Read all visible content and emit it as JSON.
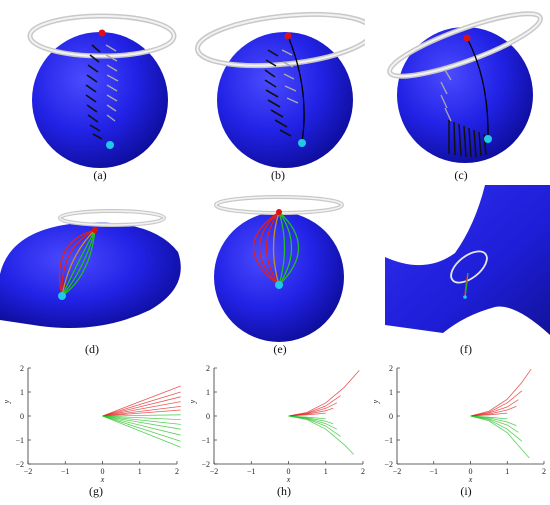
{
  "captions": {
    "a": "(a)",
    "b": "(b)",
    "c": "(c)",
    "d": "(d)",
    "e": "(e)",
    "f": "(f)",
    "g": "(g)",
    "h": "(h)",
    "i": "(i)"
  },
  "colors": {
    "sphere": "#1f1fe0",
    "ring": "#d9d9d9",
    "start_point": "#e01010",
    "end_point": "#22c8e8",
    "path_red": "#e02020",
    "path_green": "#20c020"
  },
  "chart_data": [
    {
      "type": "line",
      "panel": "g",
      "xlabel": "x",
      "ylabel": "y",
      "xlim": [
        -2,
        2
      ],
      "ylim": [
        -2,
        2
      ],
      "xticks": [
        "−2",
        "−1",
        "0",
        "1",
        "2"
      ],
      "yticks": [
        "2",
        "1",
        "0",
        "−1",
        "−2"
      ],
      "series": [
        {
          "color": "red",
          "x": [
            0,
            2.1
          ],
          "y": [
            0,
            1.25
          ]
        },
        {
          "color": "red",
          "x": [
            0,
            2.1
          ],
          "y": [
            0,
            1.0
          ]
        },
        {
          "color": "red",
          "x": [
            0,
            2.1
          ],
          "y": [
            0,
            0.8
          ]
        },
        {
          "color": "red",
          "x": [
            0,
            2.1
          ],
          "y": [
            0,
            0.6
          ]
        },
        {
          "color": "red",
          "x": [
            0,
            2.1
          ],
          "y": [
            0,
            0.4
          ]
        },
        {
          "color": "red",
          "x": [
            0,
            2.1
          ],
          "y": [
            0,
            0.25
          ]
        },
        {
          "color": "green",
          "x": [
            0,
            2.1
          ],
          "y": [
            0,
            0.05
          ]
        },
        {
          "color": "green",
          "x": [
            0,
            2.1
          ],
          "y": [
            0,
            -0.15
          ]
        },
        {
          "color": "green",
          "x": [
            0,
            2.1
          ],
          "y": [
            0,
            -0.35
          ]
        },
        {
          "color": "green",
          "x": [
            0,
            2.1
          ],
          "y": [
            0,
            -0.55
          ]
        },
        {
          "color": "green",
          "x": [
            0,
            2.1
          ],
          "y": [
            0,
            -0.8
          ]
        },
        {
          "color": "green",
          "x": [
            0,
            2.1
          ],
          "y": [
            0,
            -1.05
          ]
        },
        {
          "color": "green",
          "x": [
            0,
            2.1
          ],
          "y": [
            0,
            -1.3
          ]
        }
      ]
    },
    {
      "type": "line",
      "panel": "h",
      "xlabel": "x",
      "ylabel": "y",
      "xlim": [
        -2,
        2
      ],
      "ylim": [
        -2,
        2
      ],
      "xticks": [
        "−2",
        "−1",
        "0",
        "1",
        "2"
      ],
      "yticks": [
        "2",
        "1",
        "0",
        "−1",
        "−2"
      ],
      "series": [
        {
          "color": "red",
          "x": [
            0,
            0.5,
            1.0,
            1.5,
            1.9
          ],
          "y": [
            0,
            0.15,
            0.55,
            1.2,
            1.9
          ]
        },
        {
          "color": "red",
          "x": [
            0,
            0.5,
            1.0,
            1.4
          ],
          "y": [
            0,
            0.12,
            0.42,
            0.85
          ]
        },
        {
          "color": "red",
          "x": [
            0,
            0.5,
            1.0,
            1.3
          ],
          "y": [
            0,
            0.1,
            0.32,
            0.55
          ]
        },
        {
          "color": "red",
          "x": [
            0,
            0.5,
            1.0,
            1.2
          ],
          "y": [
            0,
            0.08,
            0.22,
            0.32
          ]
        },
        {
          "color": "red",
          "x": [
            0,
            0.5,
            1.0
          ],
          "y": [
            0,
            0.05,
            0.12
          ]
        },
        {
          "color": "green",
          "x": [
            0,
            0.5,
            1.0
          ],
          "y": [
            0,
            -0.05,
            -0.12
          ]
        },
        {
          "color": "green",
          "x": [
            0,
            0.5,
            1.0,
            1.2
          ],
          "y": [
            0,
            -0.08,
            -0.22,
            -0.32
          ]
        },
        {
          "color": "green",
          "x": [
            0,
            0.5,
            1.0,
            1.3
          ],
          "y": [
            0,
            -0.1,
            -0.32,
            -0.55
          ]
        },
        {
          "color": "green",
          "x": [
            0,
            0.5,
            1.0,
            1.4
          ],
          "y": [
            0,
            -0.12,
            -0.42,
            -0.85
          ]
        },
        {
          "color": "green",
          "x": [
            0,
            0.5,
            1.0,
            1.5,
            1.75
          ],
          "y": [
            0,
            -0.15,
            -0.55,
            -1.2,
            -1.6
          ]
        }
      ]
    },
    {
      "type": "line",
      "panel": "i",
      "xlabel": "x",
      "ylabel": "y",
      "xlim": [
        -2,
        2
      ],
      "ylim": [
        -2,
        2
      ],
      "xticks": [
        "−2",
        "−1",
        "0",
        "1",
        "2"
      ],
      "yticks": [
        "2",
        "1",
        "0",
        "−1",
        "−2"
      ],
      "series": [
        {
          "color": "red",
          "x": [
            0,
            0.5,
            1.0,
            1.4,
            1.65
          ],
          "y": [
            0,
            0.2,
            0.7,
            1.4,
            1.95
          ]
        },
        {
          "color": "red",
          "x": [
            0,
            0.5,
            1.0,
            1.4
          ],
          "y": [
            0,
            0.15,
            0.55,
            1.05
          ]
        },
        {
          "color": "red",
          "x": [
            0,
            0.5,
            1.0,
            1.3
          ],
          "y": [
            0,
            0.12,
            0.38,
            0.68
          ]
        },
        {
          "color": "red",
          "x": [
            0,
            0.5,
            1.0,
            1.25
          ],
          "y": [
            0,
            0.08,
            0.25,
            0.4
          ]
        },
        {
          "color": "red",
          "x": [
            0,
            0.5,
            1.0
          ],
          "y": [
            0,
            0.05,
            0.12
          ]
        },
        {
          "color": "green",
          "x": [
            0,
            0.5,
            1.0
          ],
          "y": [
            0,
            -0.05,
            -0.12
          ]
        },
        {
          "color": "green",
          "x": [
            0,
            0.5,
            1.0,
            1.25
          ],
          "y": [
            0,
            -0.08,
            -0.25,
            -0.4
          ]
        },
        {
          "color": "green",
          "x": [
            0,
            0.5,
            1.0,
            1.3
          ],
          "y": [
            0,
            -0.12,
            -0.38,
            -0.68
          ]
        },
        {
          "color": "green",
          "x": [
            0,
            0.5,
            1.0,
            1.4
          ],
          "y": [
            0,
            -0.15,
            -0.55,
            -1.05
          ]
        },
        {
          "color": "green",
          "x": [
            0,
            0.5,
            1.0,
            1.4,
            1.6
          ],
          "y": [
            0,
            -0.2,
            -0.7,
            -1.4,
            -1.75
          ]
        }
      ]
    }
  ]
}
